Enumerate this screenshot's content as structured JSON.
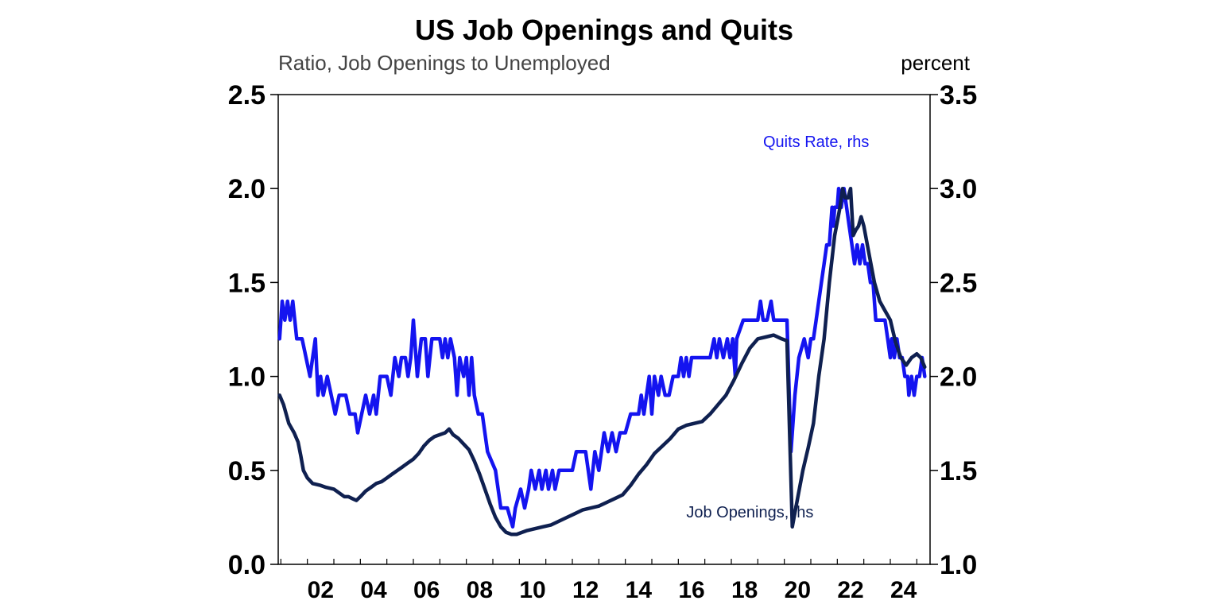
{
  "chart_data": {
    "type": "line",
    "title": "US Job Openings and Quits",
    "ylabel_left": "Ratio, Job Openings to Unemployed",
    "ylabel_right": "percent",
    "ylim_left": [
      0,
      2.5
    ],
    "ylim_right": [
      1.0,
      3.5
    ],
    "yticks_left": [
      "0.0",
      "0.5",
      "1.0",
      "1.5",
      "2.0",
      "2.5"
    ],
    "yticks_right": [
      "1.0",
      "1.5",
      "2.0",
      "2.5",
      "3.0",
      "3.5"
    ],
    "xlim": [
      2000.9,
      2025.5
    ],
    "xticks": [
      {
        "x": 2002,
        "label": "02"
      },
      {
        "x": 2004,
        "label": "04"
      },
      {
        "x": 2006,
        "label": "06"
      },
      {
        "x": 2008,
        "label": "08"
      },
      {
        "x": 2010,
        "label": "10"
      },
      {
        "x": 2012,
        "label": "12"
      },
      {
        "x": 2014,
        "label": "14"
      },
      {
        "x": 2016,
        "label": "16"
      },
      {
        "x": 2018,
        "label": "18"
      },
      {
        "x": 2020,
        "label": "20"
      },
      {
        "x": 2022,
        "label": "22"
      },
      {
        "x": 2024,
        "label": "24"
      }
    ],
    "grid": false,
    "series": [
      {
        "name": "Quits Rate, rhs",
        "axis": "right",
        "color": "#1414f0",
        "points": [
          [
            2000.95,
            2.2
          ],
          [
            2001.05,
            2.4
          ],
          [
            2001.15,
            2.3
          ],
          [
            2001.25,
            2.4
          ],
          [
            2001.35,
            2.3
          ],
          [
            2001.45,
            2.4
          ],
          [
            2001.6,
            2.2
          ],
          [
            2001.8,
            2.2
          ],
          [
            2001.95,
            2.1
          ],
          [
            2002.1,
            2.0
          ],
          [
            2002.2,
            2.1
          ],
          [
            2002.3,
            2.2
          ],
          [
            2002.4,
            1.9
          ],
          [
            2002.5,
            2.0
          ],
          [
            2002.6,
            1.9
          ],
          [
            2002.75,
            2.0
          ],
          [
            2002.9,
            1.9
          ],
          [
            2003.05,
            1.8
          ],
          [
            2003.2,
            1.9
          ],
          [
            2003.45,
            1.9
          ],
          [
            2003.6,
            1.8
          ],
          [
            2003.8,
            1.8
          ],
          [
            2003.9,
            1.7
          ],
          [
            2004.05,
            1.8
          ],
          [
            2004.2,
            1.9
          ],
          [
            2004.35,
            1.8
          ],
          [
            2004.5,
            1.9
          ],
          [
            2004.6,
            1.8
          ],
          [
            2004.75,
            2.0
          ],
          [
            2005.0,
            2.0
          ],
          [
            2005.15,
            1.9
          ],
          [
            2005.3,
            2.1
          ],
          [
            2005.45,
            2.0
          ],
          [
            2005.55,
            2.1
          ],
          [
            2005.7,
            2.1
          ],
          [
            2005.8,
            2.0
          ],
          [
            2005.9,
            2.1
          ],
          [
            2006.0,
            2.3
          ],
          [
            2006.15,
            2.0
          ],
          [
            2006.3,
            2.2
          ],
          [
            2006.45,
            2.2
          ],
          [
            2006.55,
            2.0
          ],
          [
            2006.7,
            2.2
          ],
          [
            2007.0,
            2.2
          ],
          [
            2007.1,
            2.1
          ],
          [
            2007.2,
            2.2
          ],
          [
            2007.3,
            2.1
          ],
          [
            2007.4,
            2.2
          ],
          [
            2007.55,
            2.1
          ],
          [
            2007.65,
            1.9
          ],
          [
            2007.75,
            2.1
          ],
          [
            2007.9,
            2.0
          ],
          [
            2008.0,
            2.1
          ],
          [
            2008.1,
            1.9
          ],
          [
            2008.2,
            2.1
          ],
          [
            2008.3,
            1.9
          ],
          [
            2008.45,
            1.8
          ],
          [
            2008.6,
            1.8
          ],
          [
            2008.8,
            1.6
          ],
          [
            2009.1,
            1.5
          ],
          [
            2009.3,
            1.3
          ],
          [
            2009.55,
            1.3
          ],
          [
            2009.75,
            1.2
          ],
          [
            2009.85,
            1.3
          ],
          [
            2010.05,
            1.4
          ],
          [
            2010.2,
            1.3
          ],
          [
            2010.35,
            1.4
          ],
          [
            2010.45,
            1.5
          ],
          [
            2010.6,
            1.4
          ],
          [
            2010.75,
            1.5
          ],
          [
            2010.85,
            1.4
          ],
          [
            2011.0,
            1.5
          ],
          [
            2011.1,
            1.4
          ],
          [
            2011.25,
            1.5
          ],
          [
            2011.35,
            1.4
          ],
          [
            2011.5,
            1.5
          ],
          [
            2012.0,
            1.5
          ],
          [
            2012.15,
            1.6
          ],
          [
            2012.5,
            1.6
          ],
          [
            2012.6,
            1.5
          ],
          [
            2012.7,
            1.4
          ],
          [
            2012.85,
            1.6
          ],
          [
            2013.0,
            1.5
          ],
          [
            2013.2,
            1.7
          ],
          [
            2013.35,
            1.6
          ],
          [
            2013.5,
            1.7
          ],
          [
            2013.65,
            1.6
          ],
          [
            2013.8,
            1.7
          ],
          [
            2014.0,
            1.7
          ],
          [
            2014.2,
            1.8
          ],
          [
            2014.5,
            1.8
          ],
          [
            2014.6,
            1.9
          ],
          [
            2014.7,
            1.8
          ],
          [
            2014.8,
            1.9
          ],
          [
            2014.9,
            2.0
          ],
          [
            2015.0,
            1.8
          ],
          [
            2015.1,
            2.0
          ],
          [
            2015.25,
            1.9
          ],
          [
            2015.35,
            2.0
          ],
          [
            2015.5,
            1.9
          ],
          [
            2015.65,
            1.9
          ],
          [
            2015.8,
            2.0
          ],
          [
            2016.0,
            2.0
          ],
          [
            2016.1,
            2.1
          ],
          [
            2016.2,
            2.0
          ],
          [
            2016.3,
            2.1
          ],
          [
            2016.4,
            2.0
          ],
          [
            2016.5,
            2.1
          ],
          [
            2017.0,
            2.1
          ],
          [
            2017.2,
            2.1
          ],
          [
            2017.35,
            2.2
          ],
          [
            2017.45,
            2.1
          ],
          [
            2017.55,
            2.2
          ],
          [
            2017.7,
            2.1
          ],
          [
            2017.85,
            2.2
          ],
          [
            2017.95,
            2.1
          ],
          [
            2018.05,
            2.2
          ],
          [
            2018.15,
            2.0
          ],
          [
            2018.2,
            2.2
          ],
          [
            2018.45,
            2.3
          ],
          [
            2019.0,
            2.3
          ],
          [
            2019.1,
            2.4
          ],
          [
            2019.2,
            2.3
          ],
          [
            2019.35,
            2.3
          ],
          [
            2019.5,
            2.4
          ],
          [
            2019.6,
            2.3
          ],
          [
            2020.0,
            2.3
          ],
          [
            2020.1,
            2.3
          ],
          [
            2020.25,
            1.6
          ],
          [
            2020.4,
            1.9
          ],
          [
            2020.55,
            2.1
          ],
          [
            2020.75,
            2.2
          ],
          [
            2020.9,
            2.1
          ],
          [
            2021.0,
            2.2
          ],
          [
            2021.1,
            2.2
          ],
          [
            2021.2,
            2.3
          ],
          [
            2021.3,
            2.4
          ],
          [
            2021.4,
            2.5
          ],
          [
            2021.5,
            2.6
          ],
          [
            2021.6,
            2.7
          ],
          [
            2021.7,
            2.7
          ],
          [
            2021.8,
            2.9
          ],
          [
            2021.85,
            2.8
          ],
          [
            2021.9,
            2.9
          ],
          [
            2022.0,
            2.9
          ],
          [
            2022.05,
            3.0
          ],
          [
            2022.15,
            2.9
          ],
          [
            2022.25,
            3.0
          ],
          [
            2022.35,
            2.9
          ],
          [
            2022.45,
            2.8
          ],
          [
            2022.55,
            2.7
          ],
          [
            2022.65,
            2.6
          ],
          [
            2022.75,
            2.7
          ],
          [
            2022.85,
            2.6
          ],
          [
            2022.95,
            2.7
          ],
          [
            2023.05,
            2.6
          ],
          [
            2023.15,
            2.6
          ],
          [
            2023.25,
            2.5
          ],
          [
            2023.35,
            2.5
          ],
          [
            2023.45,
            2.3
          ],
          [
            2023.55,
            2.3
          ],
          [
            2023.7,
            2.3
          ],
          [
            2023.8,
            2.3
          ],
          [
            2023.9,
            2.2
          ],
          [
            2024.0,
            2.1
          ],
          [
            2024.05,
            2.2
          ],
          [
            2024.15,
            2.1
          ],
          [
            2024.25,
            2.2
          ],
          [
            2024.35,
            2.1
          ],
          [
            2024.45,
            2.1
          ],
          [
            2024.55,
            2.0
          ],
          [
            2024.65,
            2.0
          ],
          [
            2024.7,
            1.9
          ],
          [
            2024.8,
            2.0
          ],
          [
            2024.9,
            1.9
          ],
          [
            2025.0,
            2.0
          ],
          [
            2025.1,
            2.0
          ],
          [
            2025.2,
            2.1
          ],
          [
            2025.3,
            2.0
          ]
        ]
      },
      {
        "name": "Job Openings, lhs",
        "axis": "left",
        "color": "#0f2050",
        "points": [
          [
            2000.95,
            0.9
          ],
          [
            2001.1,
            0.85
          ],
          [
            2001.3,
            0.75
          ],
          [
            2001.5,
            0.7
          ],
          [
            2001.65,
            0.65
          ],
          [
            2001.75,
            0.58
          ],
          [
            2001.85,
            0.5
          ],
          [
            2002.0,
            0.46
          ],
          [
            2002.2,
            0.43
          ],
          [
            2002.5,
            0.42
          ],
          [
            2002.7,
            0.41
          ],
          [
            2003.0,
            0.4
          ],
          [
            2003.2,
            0.38
          ],
          [
            2003.4,
            0.36
          ],
          [
            2003.55,
            0.36
          ],
          [
            2003.7,
            0.35
          ],
          [
            2003.85,
            0.34
          ],
          [
            2004.0,
            0.36
          ],
          [
            2004.2,
            0.39
          ],
          [
            2004.4,
            0.41
          ],
          [
            2004.6,
            0.43
          ],
          [
            2004.8,
            0.44
          ],
          [
            2005.0,
            0.46
          ],
          [
            2005.2,
            0.48
          ],
          [
            2005.4,
            0.5
          ],
          [
            2005.6,
            0.52
          ],
          [
            2005.8,
            0.54
          ],
          [
            2006.0,
            0.56
          ],
          [
            2006.2,
            0.59
          ],
          [
            2006.4,
            0.63
          ],
          [
            2006.6,
            0.66
          ],
          [
            2006.8,
            0.68
          ],
          [
            2007.0,
            0.69
          ],
          [
            2007.2,
            0.7
          ],
          [
            2007.35,
            0.72
          ],
          [
            2007.5,
            0.69
          ],
          [
            2007.7,
            0.67
          ],
          [
            2007.9,
            0.64
          ],
          [
            2008.1,
            0.61
          ],
          [
            2008.3,
            0.55
          ],
          [
            2008.5,
            0.48
          ],
          [
            2008.7,
            0.4
          ],
          [
            2008.9,
            0.32
          ],
          [
            2009.1,
            0.25
          ],
          [
            2009.3,
            0.2
          ],
          [
            2009.5,
            0.17
          ],
          [
            2009.7,
            0.16
          ],
          [
            2009.9,
            0.16
          ],
          [
            2010.1,
            0.17
          ],
          [
            2010.3,
            0.18
          ],
          [
            2010.6,
            0.19
          ],
          [
            2010.9,
            0.2
          ],
          [
            2011.2,
            0.21
          ],
          [
            2011.5,
            0.23
          ],
          [
            2011.8,
            0.25
          ],
          [
            2012.1,
            0.27
          ],
          [
            2012.4,
            0.29
          ],
          [
            2012.7,
            0.3
          ],
          [
            2013.0,
            0.31
          ],
          [
            2013.3,
            0.33
          ],
          [
            2013.6,
            0.35
          ],
          [
            2013.9,
            0.37
          ],
          [
            2014.2,
            0.42
          ],
          [
            2014.5,
            0.48
          ],
          [
            2014.8,
            0.53
          ],
          [
            2015.1,
            0.59
          ],
          [
            2015.4,
            0.63
          ],
          [
            2015.7,
            0.67
          ],
          [
            2016.0,
            0.72
          ],
          [
            2016.3,
            0.74
          ],
          [
            2016.6,
            0.75
          ],
          [
            2016.9,
            0.76
          ],
          [
            2017.2,
            0.8
          ],
          [
            2017.5,
            0.85
          ],
          [
            2017.8,
            0.9
          ],
          [
            2018.1,
            0.98
          ],
          [
            2018.4,
            1.07
          ],
          [
            2018.7,
            1.15
          ],
          [
            2019.0,
            1.2
          ],
          [
            2019.3,
            1.21
          ],
          [
            2019.6,
            1.22
          ],
          [
            2019.9,
            1.2
          ],
          [
            2020.1,
            1.19
          ],
          [
            2020.3,
            0.2
          ],
          [
            2020.5,
            0.35
          ],
          [
            2020.7,
            0.5
          ],
          [
            2020.9,
            0.62
          ],
          [
            2021.1,
            0.75
          ],
          [
            2021.3,
            1.0
          ],
          [
            2021.5,
            1.2
          ],
          [
            2021.7,
            1.5
          ],
          [
            2021.9,
            1.75
          ],
          [
            2022.1,
            1.9
          ],
          [
            2022.2,
            2.0
          ],
          [
            2022.3,
            1.95
          ],
          [
            2022.4,
            1.95
          ],
          [
            2022.5,
            2.0
          ],
          [
            2022.6,
            1.75
          ],
          [
            2022.7,
            1.78
          ],
          [
            2022.8,
            1.8
          ],
          [
            2022.9,
            1.85
          ],
          [
            2023.0,
            1.8
          ],
          [
            2023.2,
            1.65
          ],
          [
            2023.4,
            1.5
          ],
          [
            2023.6,
            1.4
          ],
          [
            2023.8,
            1.35
          ],
          [
            2024.0,
            1.3
          ],
          [
            2024.2,
            1.18
          ],
          [
            2024.4,
            1.1
          ],
          [
            2024.6,
            1.06
          ],
          [
            2024.8,
            1.1
          ],
          [
            2025.0,
            1.12
          ],
          [
            2025.15,
            1.1
          ],
          [
            2025.3,
            1.05
          ]
        ]
      }
    ],
    "annotations": [
      {
        "text": "Quits Rate, rhs",
        "x": 2019.2,
        "y_right": 3.22,
        "color": "#1414f0"
      },
      {
        "text": "Job Openings, lhs",
        "x": 2016.3,
        "y_left": 0.25,
        "color": "#0f2050"
      }
    ]
  }
}
